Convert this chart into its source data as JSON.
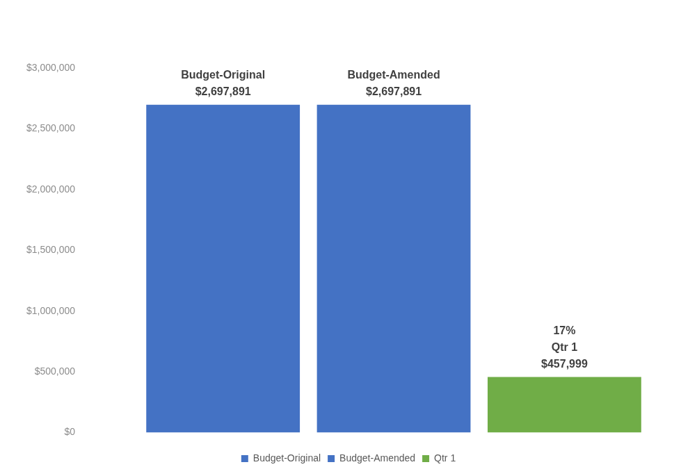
{
  "chart_data": {
    "type": "bar",
    "categories": [
      null
    ],
    "series": [
      {
        "name": "Budget-Original",
        "color": "#4472c4",
        "values": [
          2697891
        ],
        "value_labels": [
          "Budget-Original\n$2,697,891"
        ]
      },
      {
        "name": "Budget-Amended",
        "color": "#4472c4",
        "values": [
          2697891
        ],
        "value_labels": [
          "Budget-Amended\n$2,697,891"
        ]
      },
      {
        "name": "Qtr 1",
        "color": "#70ad47",
        "values": [
          457999
        ],
        "value_labels": [
          "17%\nQtr 1\n$457,999"
        ]
      }
    ],
    "ylim": [
      0,
      3000000
    ],
    "yticks": [
      {
        "value": 0,
        "label": "$0"
      },
      {
        "value": 500000,
        "label": "$500,000"
      },
      {
        "value": 1000000,
        "label": "$1,000,000"
      },
      {
        "value": 1500000,
        "label": "$1,500,000"
      },
      {
        "value": 2000000,
        "label": "$2,000,000"
      },
      {
        "value": 2500000,
        "label": "$2,500,000"
      },
      {
        "value": 3000000,
        "label": "$3,000,000"
      }
    ],
    "grid": false,
    "legend": "bottom"
  }
}
